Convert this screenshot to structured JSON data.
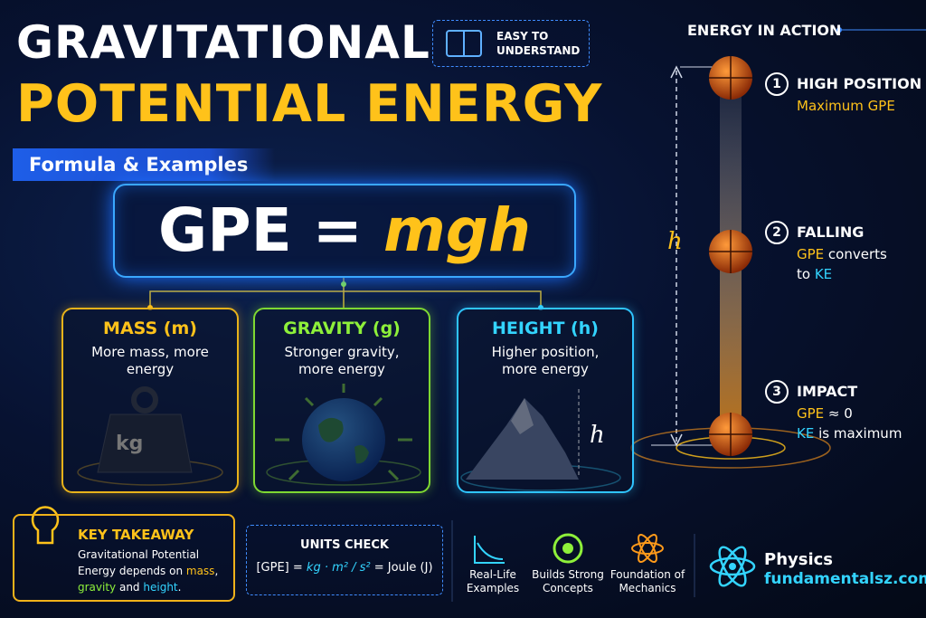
{
  "header": {
    "title_line1": "GRAVITATIONAL",
    "title_line2": "POTENTIAL ENERGY",
    "subtitle": "Formula & Examples",
    "badge": "EASY TO UNDERSTAND"
  },
  "formula": {
    "lhs": "GPE = ",
    "rhs": "mgh"
  },
  "factors": [
    {
      "title": "MASS (m)",
      "text": "More mass, more energy",
      "icon_label": "kg"
    },
    {
      "title": "GRAVITY (g)",
      "text": "Stronger gravity, more energy"
    },
    {
      "title": "HEIGHT (h)",
      "text": "Higher position, more energy",
      "icon_label": "h"
    }
  ],
  "action": {
    "title": "ENERGY IN ACTION",
    "height_label": "h",
    "steps": [
      {
        "number": "1",
        "title": "HIGH POSITION",
        "lines": [
          [
            {
              "text": "Maximum GPE",
              "tone": "yellow"
            }
          ]
        ]
      },
      {
        "number": "2",
        "title": "FALLING",
        "lines": [
          [
            {
              "text": "GPE",
              "tone": "yellow"
            },
            {
              "text": " converts",
              "tone": "white"
            }
          ],
          [
            {
              "text": "to ",
              "tone": "white"
            },
            {
              "text": "KE",
              "tone": "cyan"
            }
          ]
        ]
      },
      {
        "number": "3",
        "title": "IMPACT",
        "lines": [
          [
            {
              "text": "GPE",
              "tone": "yellow"
            },
            {
              "text": " ≈ 0",
              "tone": "white"
            }
          ],
          [
            {
              "text": "KE",
              "tone": "cyan"
            },
            {
              "text": " is maximum",
              "tone": "white"
            }
          ]
        ]
      }
    ]
  },
  "key_takeaway": {
    "title": "KEY TAKEAWAY",
    "parts": [
      {
        "text": "Gravitational Potential Energy depends on ",
        "tone": "white"
      },
      {
        "text": "mass",
        "tone": "yellow"
      },
      {
        "text": ", ",
        "tone": "white"
      },
      {
        "text": "gravity",
        "tone": "green"
      },
      {
        "text": " and ",
        "tone": "white"
      },
      {
        "text": "height",
        "tone": "cyan"
      },
      {
        "text": ".",
        "tone": "white"
      }
    ]
  },
  "units_check": {
    "title": "UNITS CHECK",
    "lhs": "[GPE] = ",
    "units": "kg · m² / s²",
    "rhs": " = Joule (J)"
  },
  "features": [
    "Real-Life Examples",
    "Builds Strong Concepts",
    "Foundation of Mechanics"
  ],
  "brand": {
    "name": "Physics",
    "site": "fundamentalsz.com"
  }
}
